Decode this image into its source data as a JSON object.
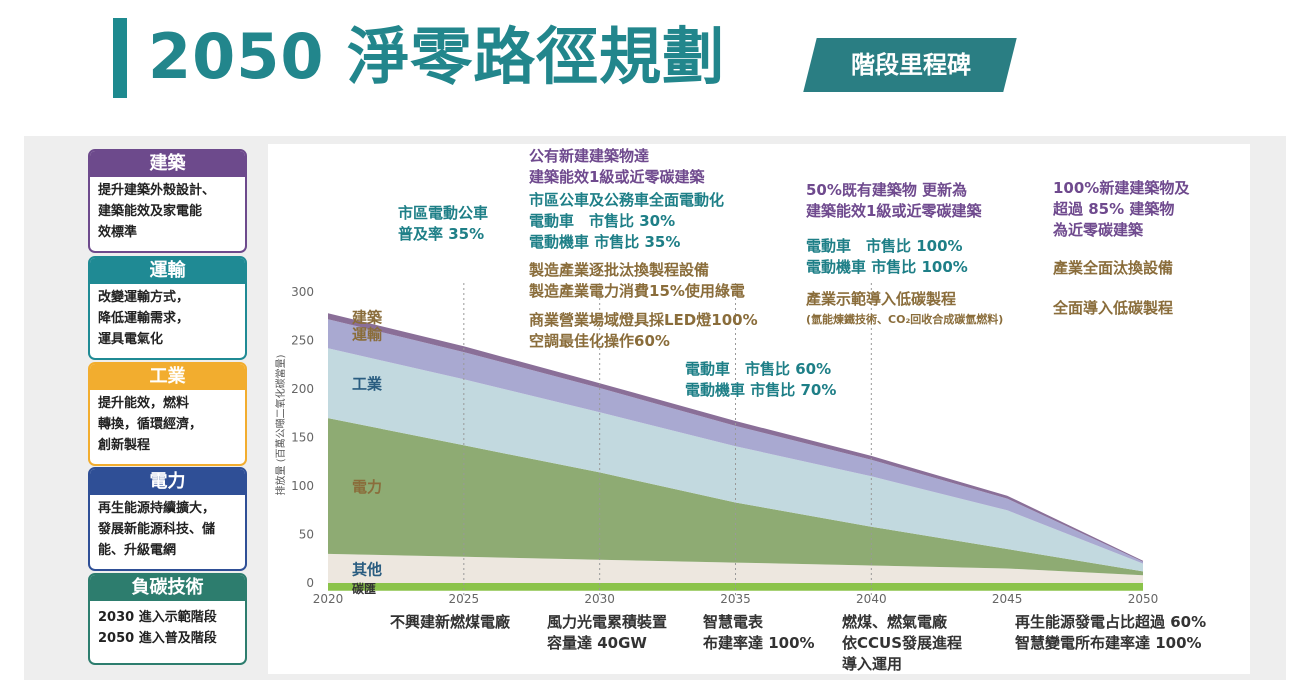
{
  "header": {
    "title": "2050 淨零路徑規劃",
    "badge": "階段里程碑"
  },
  "sectors": [
    {
      "title": "建築",
      "color": "#6d4a8c",
      "lines": [
        "提升建築外殼設計、",
        "建築能效及家電能",
        "效標準"
      ]
    },
    {
      "title": "運輸",
      "color": "#1f8a94",
      "lines": [
        "改變運輸方式，",
        "降低運輸需求，",
        "運具電氣化"
      ]
    },
    {
      "title": "工業",
      "color": "#f2ad2f",
      "lines": [
        "提升能效，燃料",
        "轉換，循環經濟，",
        "創新製程"
      ]
    },
    {
      "title": "電力",
      "color": "#2f4f96",
      "lines": [
        "再生能源持續擴大，",
        "發展新能源科技、儲",
        "能、升級電網"
      ]
    },
    {
      "title": "負碳技術",
      "color": "#2d7d6e",
      "lines": [
        "2030 進入示範階段",
        "2050 進入普及階段"
      ]
    }
  ],
  "milestones_top": [
    {
      "lines": [
        "市區電動公車",
        "普及率 35%"
      ],
      "style": "teal"
    },
    {
      "lines": [
        "公有新建建築物達",
        "建築能效1級或近零碳建築"
      ],
      "style": "purple"
    },
    {
      "lines": [
        "市區公車及公務車全面電動化",
        "電動車　市售比 30%",
        "電動機車 市售比 35%"
      ],
      "style": "teal"
    },
    {
      "lines": [
        "製造產業逐批汰換製程設備",
        "製造產業電力消費15%使用綠電"
      ],
      "style": "brown"
    },
    {
      "lines": [
        "商業營業場域燈具採LED燈100%",
        "空調最佳化操作60%"
      ],
      "style": "brown"
    },
    {
      "lines": [
        "電動車　市售比 60%",
        "電動機車 市售比 70%"
      ],
      "style": "teal"
    },
    {
      "lines": [
        "50%既有建築物 更新為",
        "建築能效1級或近零碳建築"
      ],
      "style": "purple"
    },
    {
      "lines": [
        "電動車　市售比 100%",
        "電動機車 市售比 100%"
      ],
      "style": "teal"
    },
    {
      "lines": [
        "產業示範導入低碳製程"
      ],
      "style": "brown"
    },
    {
      "lines": [
        "(氫能煉鐵技術、CO₂回收合成碳氫燃料)"
      ],
      "style": "brown"
    },
    {
      "lines": [
        "100%新建建築物及",
        "超過 85% 建築物",
        "為近零碳建築"
      ],
      "style": "purple"
    },
    {
      "lines": [
        "產業全面汰換設備"
      ],
      "style": "brown"
    },
    {
      "lines": [
        "全面導入低碳製程"
      ],
      "style": "brown"
    }
  ],
  "milestones_bottom": [
    {
      "lines": [
        "不興建新燃煤電廠"
      ]
    },
    {
      "lines": [
        "風力光電累積裝置",
        "容量達 40GW"
      ]
    },
    {
      "lines": [
        "智慧電表",
        "布建率達 100%"
      ]
    },
    {
      "lines": [
        "燃煤、燃氣電廠",
        "依CCUS發展進程",
        "導入運用"
      ]
    },
    {
      "lines": [
        "再生能源發電占比超過 60%",
        "智慧變電所布建率達 100%"
      ]
    }
  ],
  "chart_data": {
    "type": "area",
    "stacked": true,
    "x": [
      2020,
      2025,
      2030,
      2035,
      2040,
      2045,
      2050
    ],
    "xticks": [
      "2020",
      "2025",
      "2030",
      "2035",
      "2040",
      "2045",
      "2050"
    ],
    "yticks": [
      "0",
      "50",
      "100",
      "150",
      "200",
      "250",
      "300"
    ],
    "ylabel": "排放量 (百萬公噸二氧化碳當量)",
    "ylim": [
      0,
      300
    ],
    "series": [
      {
        "name": "碳匯",
        "color": "#8bc34a",
        "values": [
          -8,
          -8,
          -8,
          -8,
          -8,
          -8,
          -8
        ]
      },
      {
        "name": "其他",
        "color": "#ede7df",
        "values": [
          30,
          27,
          24,
          21,
          18,
          15,
          8
        ]
      },
      {
        "name": "電力",
        "color": "#8eab73",
        "values": [
          140,
          115,
          90,
          62,
          40,
          20,
          4
        ]
      },
      {
        "name": "工業",
        "color": "#c2d9df",
        "values": [
          72,
          68,
          62,
          58,
          52,
          40,
          8
        ]
      },
      {
        "name": "運輸",
        "color": "#a9a9d1",
        "values": [
          30,
          28,
          25,
          21,
          17,
          12,
          2
        ]
      },
      {
        "name": "建築",
        "color": "#8a6f98",
        "values": [
          6,
          6,
          5,
          5,
          4,
          3,
          1
        ]
      }
    ],
    "milestone_years": [
      2025,
      2030,
      2035,
      2040
    ],
    "grid": false
  }
}
